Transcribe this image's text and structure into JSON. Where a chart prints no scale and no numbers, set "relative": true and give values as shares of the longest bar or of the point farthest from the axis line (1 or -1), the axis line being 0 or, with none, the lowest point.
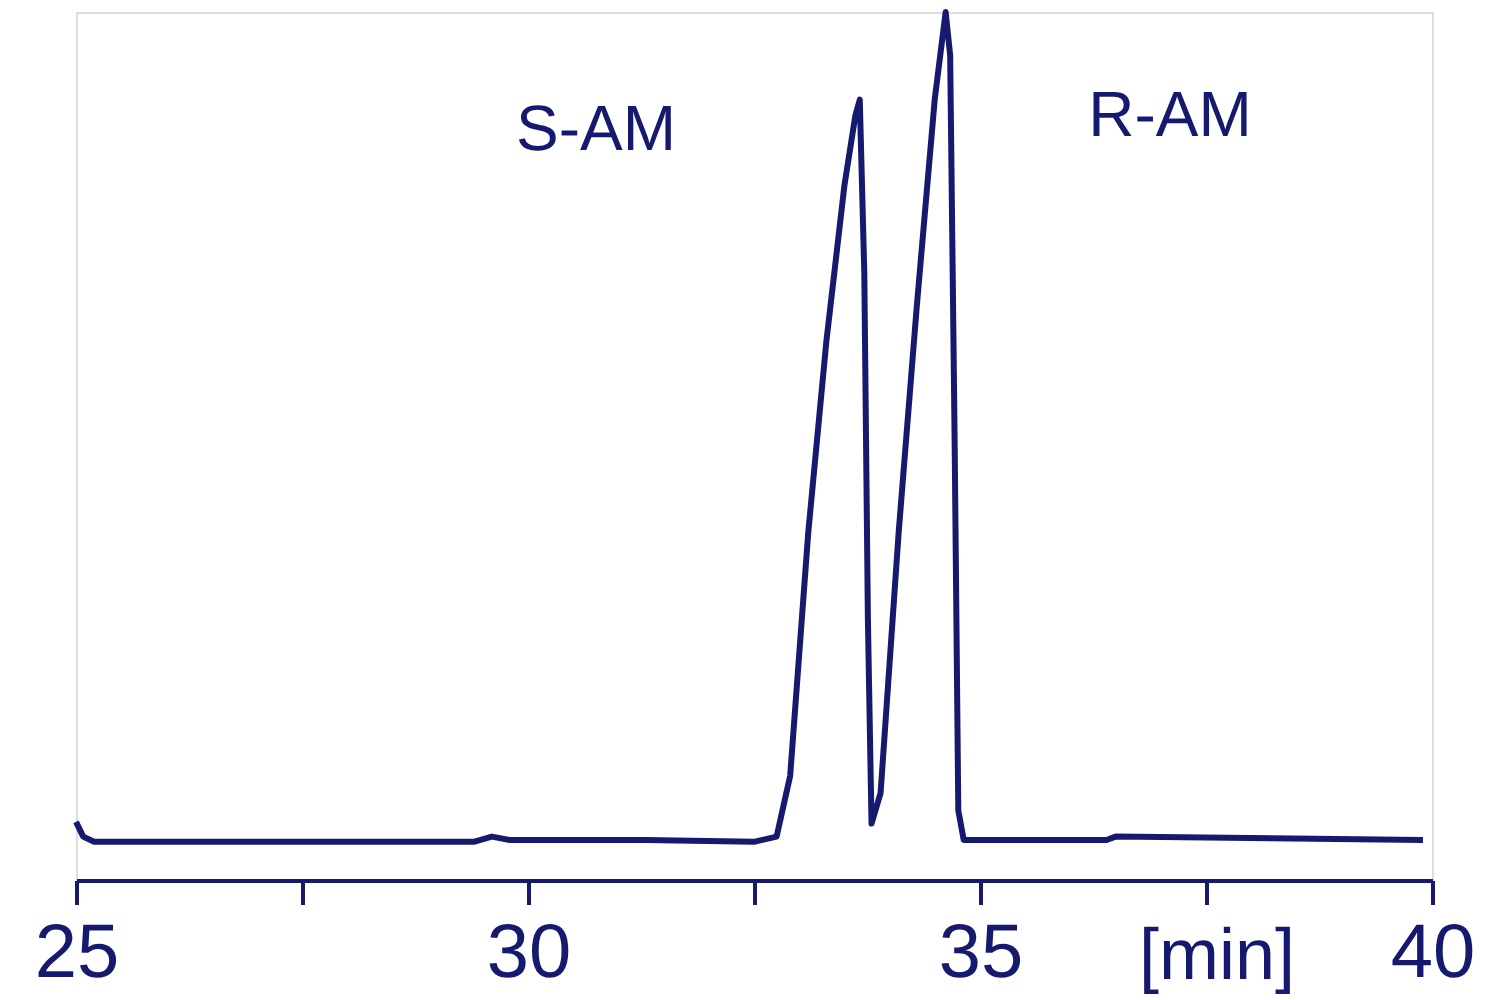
{
  "chart_data": {
    "type": "line",
    "relative": true,
    "xlabel": "[min]",
    "x": [
      25.0,
      25.08,
      25.2,
      29.4,
      29.6,
      29.8,
      31.3,
      32.5,
      32.75,
      32.9,
      33.1,
      33.3,
      33.5,
      33.62,
      33.67,
      33.72,
      33.76,
      33.8,
      33.9,
      34.1,
      34.3,
      34.5,
      34.62,
      34.67,
      34.72,
      34.76,
      34.82,
      36.4,
      36.5,
      39.9
    ],
    "series": [
      {
        "color": "#151a6e",
        "values": [
          0.067,
          0.05,
          0.044,
          0.044,
          0.05,
          0.046,
          0.046,
          0.044,
          0.05,
          0.12,
          0.4,
          0.62,
          0.8,
          0.88,
          0.899,
          0.7,
          0.3,
          0.065,
          0.1,
          0.4,
          0.66,
          0.9,
          1.0,
          0.95,
          0.5,
          0.08,
          0.046,
          0.046,
          0.05,
          0.046
        ]
      }
    ],
    "xlim": [
      25,
      40
    ],
    "xticks": [
      25,
      {
        "value": 27.5,
        "label": null
      },
      30,
      {
        "value": 32.5,
        "label": null
      },
      35,
      {
        "value": 37.5,
        "label": null
      },
      40
    ],
    "annotations": [
      "S-AM",
      "R-AM"
    ],
    "grid": false
  }
}
